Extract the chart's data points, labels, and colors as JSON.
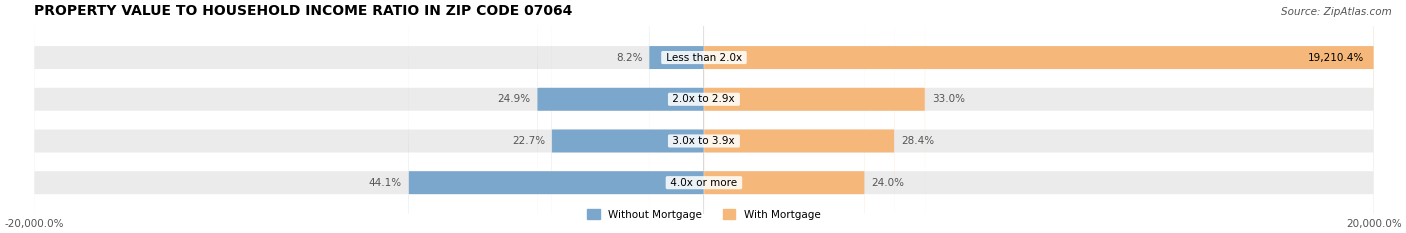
{
  "title": "PROPERTY VALUE TO HOUSEHOLD INCOME RATIO IN ZIP CODE 07064",
  "source": "Source: ZipAtlas.com",
  "categories": [
    "Less than 2.0x",
    "2.0x to 2.9x",
    "3.0x to 3.9x",
    "4.0x or more"
  ],
  "without_mortgage": [
    8.2,
    24.9,
    22.7,
    44.1
  ],
  "with_mortgage": [
    19210.4,
    33.0,
    28.4,
    24.0
  ],
  "color_without": "#7ba7cc",
  "color_with": "#f5b87a",
  "bg_bar": "#ebebeb",
  "x_min": -20000,
  "x_max": 20000,
  "x_labels_left": "-20,000.0%",
  "x_labels_right": "20,000.0%",
  "legend_without": "Without Mortgage",
  "legend_with": "With Mortgage",
  "title_fontsize": 10,
  "source_fontsize": 7.5,
  "label_fontsize": 7.5,
  "tick_fontsize": 7.5
}
